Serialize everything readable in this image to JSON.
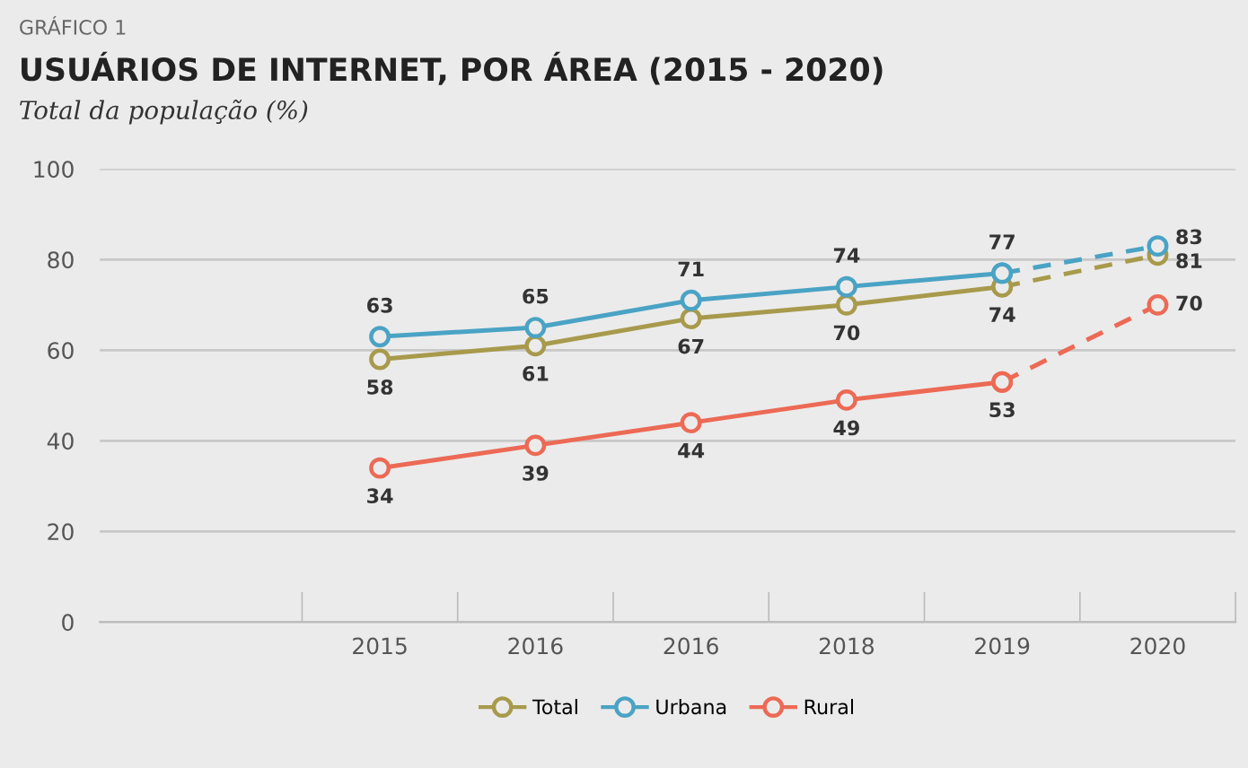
{
  "chart_data": {
    "type": "line",
    "title": "USUÁRIOS DE INTERNET, POR ÁREA (2015 - 2020)",
    "subtitle": "Total da população (%)",
    "annotations": [
      "GRÁFICO 1"
    ],
    "categories": [
      "2015",
      "2016",
      "2016",
      "2018",
      "2019",
      "2020"
    ],
    "series": [
      {
        "name": "Total",
        "color": "#a89a4c",
        "values": [
          58,
          61,
          67,
          70,
          74,
          null
        ],
        "value_labels": [
          "58",
          "61",
          "67",
          "70",
          "74",
          null
        ]
      },
      {
        "name": "Urbana",
        "color": "#4aa3c4",
        "values": [
          63,
          65,
          71,
          74,
          77,
          null
        ],
        "value_labels": [
          "63",
          "65",
          "71",
          "74",
          "77",
          null
        ]
      },
      {
        "name": "Rural",
        "color": "#ec6a55",
        "values": [
          34,
          39,
          44,
          49,
          53,
          null
        ],
        "value_labels": [
          "34",
          "39",
          "44",
          "49",
          "53",
          null
        ]
      },
      {
        "color": "#a89a4c",
        "line_style": "dashed",
        "values": [
          null,
          null,
          null,
          null,
          74,
          81
        ],
        "value_labels": [
          null,
          null,
          null,
          null,
          null,
          "81"
        ]
      },
      {
        "color": "#4aa3c4",
        "line_style": "dashed",
        "values": [
          null,
          null,
          null,
          null,
          77,
          83
        ],
        "value_labels": [
          null,
          null,
          null,
          null,
          null,
          "83"
        ]
      },
      {
        "color": "#ec6a55",
        "line_style": "dashed",
        "values": [
          null,
          null,
          null,
          null,
          53,
          70
        ],
        "value_labels": [
          null,
          null,
          null,
          null,
          null,
          "70"
        ]
      }
    ],
    "ylim": [
      0,
      100
    ],
    "yticks": [
      0,
      20,
      40,
      60,
      80,
      100
    ],
    "grid": "y",
    "legend": "bottom",
    "marker": "circle",
    "line_style": "solid"
  }
}
